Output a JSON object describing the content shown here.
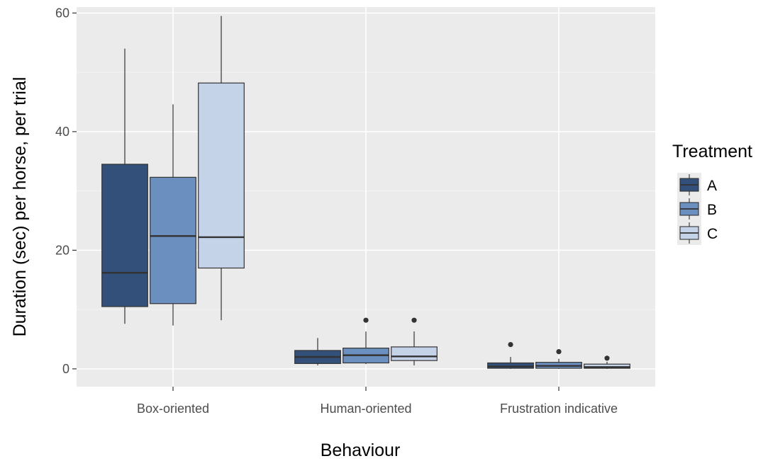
{
  "chart_data": {
    "type": "boxplot",
    "xlabel": "Behaviour",
    "ylabel": "Duration (sec) per horse, per trial",
    "ylim": [
      -3,
      61
    ],
    "yticks": [
      0,
      20,
      40,
      60
    ],
    "categories": [
      "Box-oriented",
      "Human-oriented",
      "Frustration indicative"
    ],
    "legend": {
      "title": "Treatment",
      "position": "right"
    },
    "grid": true,
    "series": [
      {
        "name": "A",
        "color": "#33507a",
        "boxes": [
          {
            "lower": 7.6,
            "q1": 10.5,
            "median": 16.2,
            "q3": 34.5,
            "upper": 54.0,
            "outliers": []
          },
          {
            "lower": 0.6,
            "q1": 0.9,
            "median": 2.0,
            "q3": 3.1,
            "upper": 5.2,
            "outliers": []
          },
          {
            "lower": 0.0,
            "q1": 0.1,
            "median": 0.4,
            "q3": 1.0,
            "upper": 2.0,
            "outliers": [
              4.1
            ]
          }
        ]
      },
      {
        "name": "B",
        "color": "#6b8fbf",
        "boxes": [
          {
            "lower": 7.3,
            "q1": 11.0,
            "median": 22.4,
            "q3": 32.3,
            "upper": 44.6,
            "outliers": []
          },
          {
            "lower": 0.8,
            "q1": 1.0,
            "median": 2.3,
            "q3": 3.5,
            "upper": 6.3,
            "outliers": [
              8.2
            ]
          },
          {
            "lower": 0.0,
            "q1": 0.1,
            "median": 0.5,
            "q3": 1.1,
            "upper": 1.7,
            "outliers": [
              2.9
            ]
          }
        ]
      },
      {
        "name": "C",
        "color": "#c5d3e8",
        "boxes": [
          {
            "lower": 8.2,
            "q1": 17.0,
            "median": 22.2,
            "q3": 48.2,
            "upper": 59.5,
            "outliers": []
          },
          {
            "lower": 0.6,
            "q1": 1.4,
            "median": 2.1,
            "q3": 3.7,
            "upper": 6.3,
            "outliers": [
              8.2
            ]
          },
          {
            "lower": 0.0,
            "q1": 0.1,
            "median": 0.3,
            "q3": 0.8,
            "upper": 1.2,
            "outliers": [
              1.8
            ]
          }
        ]
      }
    ]
  }
}
